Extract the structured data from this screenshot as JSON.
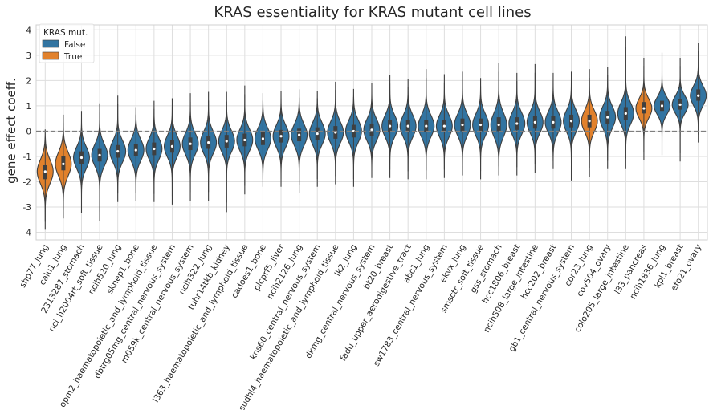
{
  "chart_data": {
    "type": "violin",
    "title": "KRAS essentiality for KRAS mutant cell lines",
    "xlabel": "",
    "ylabel": "gene effect coeff.",
    "ylim": [
      -4.3,
      4.2
    ],
    "yticks": [
      -4,
      -3,
      -2,
      -1,
      0,
      1,
      2,
      3,
      4
    ],
    "grid": true,
    "reference_line": 0,
    "legend": {
      "title": "KRAS mut.",
      "placement": "top-left",
      "entries": [
        {
          "label": "False",
          "color": "#3274a1"
        },
        {
          "label": "True",
          "color": "#e1812c"
        }
      ]
    },
    "categories": [
      {
        "name": "shp77_lung",
        "mutant": true,
        "min": -3.9,
        "q1": -1.9,
        "median": -1.6,
        "q3": -1.35,
        "max": 0.05
      },
      {
        "name": "calu1_lung",
        "mutant": true,
        "min": -3.45,
        "q1": -1.55,
        "median": -1.3,
        "q3": -1.0,
        "max": 0.65
      },
      {
        "name": "2313287_stomach",
        "mutant": false,
        "min": -3.25,
        "q1": -1.3,
        "median": -1.05,
        "q3": -0.8,
        "max": 0.8
      },
      {
        "name": "nci_h2004rt_soft_tissue",
        "mutant": false,
        "min": -3.55,
        "q1": -1.2,
        "median": -0.95,
        "q3": -0.7,
        "max": 1.1
      },
      {
        "name": "ncih520_lung",
        "mutant": false,
        "min": -2.8,
        "q1": -1.05,
        "median": -0.8,
        "q3": -0.55,
        "max": 1.4
      },
      {
        "name": "sknep1_bone",
        "mutant": false,
        "min": -2.75,
        "q1": -1.0,
        "median": -0.75,
        "q3": -0.5,
        "max": 0.95
      },
      {
        "name": "opm2_haematopoietic_and_lymphoid_tissue",
        "mutant": false,
        "min": -2.8,
        "q1": -0.95,
        "median": -0.7,
        "q3": -0.45,
        "max": 1.2
      },
      {
        "name": "dbtrg05mg_central_nervous_system",
        "mutant": false,
        "min": -2.9,
        "q1": -0.85,
        "median": -0.6,
        "q3": -0.35,
        "max": 1.3
      },
      {
        "name": "m059k_central_nervous_system",
        "mutant": false,
        "min": -2.75,
        "q1": -0.75,
        "median": -0.5,
        "q3": -0.25,
        "max": 1.5
      },
      {
        "name": "ncih322_lung",
        "mutant": false,
        "min": -2.75,
        "q1": -0.7,
        "median": -0.45,
        "q3": -0.2,
        "max": 1.55
      },
      {
        "name": "tuhr14tkb_kidney",
        "mutant": false,
        "min": -3.2,
        "q1": -0.65,
        "median": -0.4,
        "q3": -0.15,
        "max": 1.55
      },
      {
        "name": "l363_haematopoietic_and_lymphoid_tissue",
        "mutant": false,
        "min": -2.5,
        "q1": -0.6,
        "median": -0.35,
        "q3": -0.1,
        "max": 1.8
      },
      {
        "name": "cadoes1_bone",
        "mutant": false,
        "min": -2.2,
        "q1": -0.55,
        "median": -0.3,
        "q3": -0.05,
        "max": 1.5
      },
      {
        "name": "plcprf5_liver",
        "mutant": false,
        "min": -2.2,
        "q1": -0.45,
        "median": -0.2,
        "q3": 0.05,
        "max": 1.6
      },
      {
        "name": "ncih2126_lung",
        "mutant": false,
        "min": -2.45,
        "q1": -0.4,
        "median": -0.15,
        "q3": 0.1,
        "max": 1.65
      },
      {
        "name": "kns60_central_nervous_system",
        "mutant": false,
        "min": -2.2,
        "q1": -0.35,
        "median": -0.1,
        "q3": 0.15,
        "max": 1.6
      },
      {
        "name": "sudhl4_haematopoietic_and_lymphoid_tissue",
        "mutant": false,
        "min": -2.1,
        "q1": -0.3,
        "median": -0.05,
        "q3": 0.2,
        "max": 1.95
      },
      {
        "name": "lk2_lung",
        "mutant": false,
        "min": -2.2,
        "q1": -0.25,
        "median": 0.0,
        "q3": 0.25,
        "max": 1.65
      },
      {
        "name": "dkmg_central_nervous_system",
        "mutant": false,
        "min": -1.85,
        "q1": -0.2,
        "median": 0.05,
        "q3": 0.3,
        "max": 1.9
      },
      {
        "name": "bt20_breast",
        "mutant": false,
        "min": -1.85,
        "q1": -0.05,
        "median": 0.2,
        "q3": 0.45,
        "max": 2.2
      },
      {
        "name": "fadu_upper_aerodigestive_tract",
        "mutant": false,
        "min": -1.9,
        "q1": -0.05,
        "median": 0.2,
        "q3": 0.45,
        "max": 2.05
      },
      {
        "name": "abc1_lung",
        "mutant": false,
        "min": -1.9,
        "q1": -0.05,
        "median": 0.2,
        "q3": 0.45,
        "max": 2.45
      },
      {
        "name": "sw1783_central_nervous_system",
        "mutant": false,
        "min": -1.85,
        "q1": -0.05,
        "median": 0.2,
        "q3": 0.45,
        "max": 2.25
      },
      {
        "name": "ekvx_lung",
        "mutant": false,
        "min": -1.75,
        "q1": 0.0,
        "median": 0.25,
        "q3": 0.5,
        "max": 2.35
      },
      {
        "name": "smsctr_soft_tissue",
        "mutant": false,
        "min": -1.9,
        "q1": 0.0,
        "median": 0.25,
        "q3": 0.5,
        "max": 2.1
      },
      {
        "name": "gss_stomach",
        "mutant": false,
        "min": -1.75,
        "q1": 0.0,
        "median": 0.25,
        "q3": 0.55,
        "max": 2.7
      },
      {
        "name": "hcc1806_breast",
        "mutant": false,
        "min": -1.75,
        "q1": 0.05,
        "median": 0.3,
        "q3": 0.55,
        "max": 2.3
      },
      {
        "name": "ncih508_large_intestine",
        "mutant": false,
        "min": -1.65,
        "q1": 0.1,
        "median": 0.35,
        "q3": 0.6,
        "max": 2.65
      },
      {
        "name": "hcc202_breast",
        "mutant": false,
        "min": -1.5,
        "q1": 0.1,
        "median": 0.35,
        "q3": 0.6,
        "max": 2.3
      },
      {
        "name": "gb1_central_nervous_system",
        "mutant": false,
        "min": -1.95,
        "q1": 0.15,
        "median": 0.4,
        "q3": 0.65,
        "max": 2.35
      },
      {
        "name": "cor23_lung",
        "mutant": true,
        "min": -1.8,
        "q1": 0.15,
        "median": 0.4,
        "q3": 0.65,
        "max": 2.45
      },
      {
        "name": "cov504_ovary",
        "mutant": false,
        "min": -1.5,
        "q1": 0.3,
        "median": 0.55,
        "q3": 0.8,
        "max": 2.55
      },
      {
        "name": "colo205_large_intestine",
        "mutant": false,
        "min": -1.5,
        "q1": 0.45,
        "median": 0.7,
        "q3": 0.95,
        "max": 3.75
      },
      {
        "name": "l33_pancreas",
        "mutant": true,
        "min": -1.15,
        "q1": 0.7,
        "median": 0.9,
        "q3": 1.15,
        "max": 2.9
      },
      {
        "name": "ncih1836_lung",
        "mutant": false,
        "min": -0.95,
        "q1": 0.8,
        "median": 1.0,
        "q3": 1.2,
        "max": 3.1
      },
      {
        "name": "kpl1_breast",
        "mutant": false,
        "min": -1.2,
        "q1": 0.85,
        "median": 1.05,
        "q3": 1.25,
        "max": 2.9
      },
      {
        "name": "efo21_ovary",
        "mutant": false,
        "min": -0.45,
        "q1": 1.2,
        "median": 1.4,
        "q3": 1.65,
        "max": 3.5
      }
    ]
  }
}
